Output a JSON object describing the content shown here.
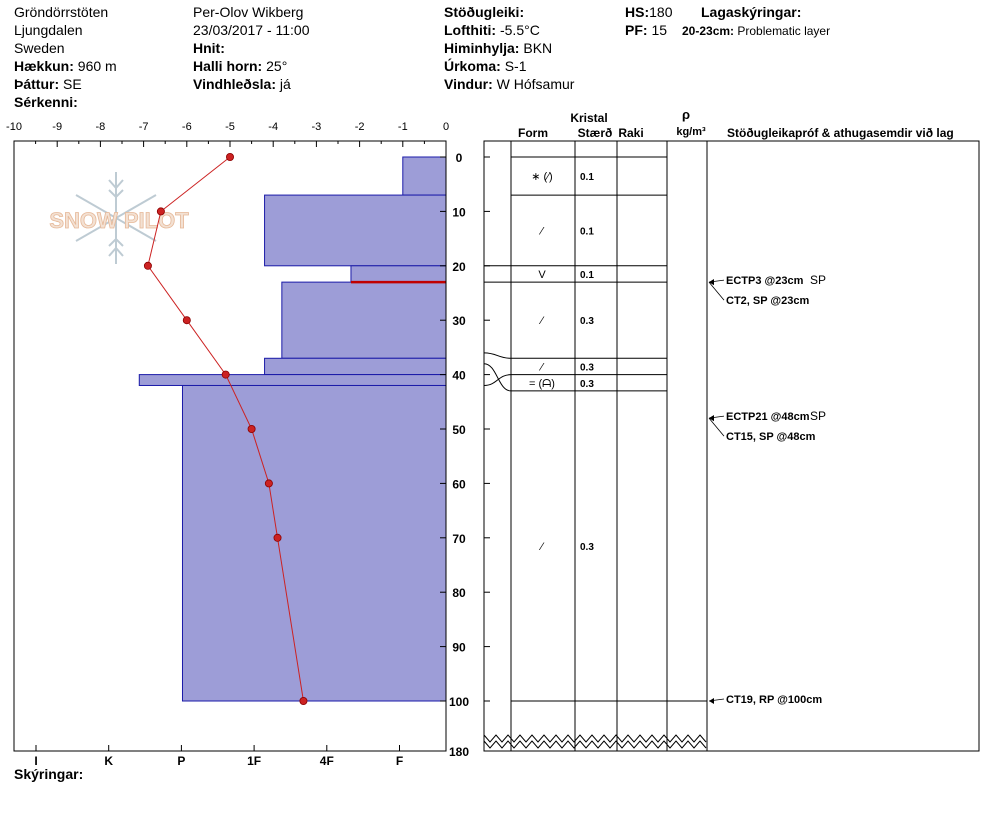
{
  "header": {
    "location": "Gröndörrstöten",
    "region": "Ljungdalen",
    "country": "Sweden",
    "elevation_label": "Hækkun:",
    "elevation_value": "960 m",
    "aspect_label": "Þáttur:",
    "aspect_value": "SE",
    "special_label": "Sérkenni:",
    "observer": "Per-Olov Wikberg",
    "datetime": "23/03/2017 - 11:00",
    "coords_label": "Hnit:",
    "slope_label": "Halli horn:",
    "slope_value": "25°",
    "wind_loading_label": "Vindhleðsla:",
    "wind_loading_value": "já",
    "stability_label": "Stöðugleiki:",
    "air_temp_label": "Lofthiti:",
    "air_temp_value": "-5.5°C",
    "sky_label": "Himinhylja:",
    "sky_value": "BKN",
    "precip_label": "Úrkoma:",
    "precip_value": "S-1",
    "wind_label": "Vindur:",
    "wind_value": "W Hófsamur",
    "hs_label": "HS:",
    "hs_value": "180",
    "pf_label": "PF:",
    "pf_value": "15",
    "legend_label": "Lagaskýringar:",
    "legend_range": "20-23cm:",
    "legend_text": "Problematic layer"
  },
  "footer": {
    "notes_label": "Skýringar:"
  },
  "watermark": "SNOW PILOT",
  "table_headers": {
    "kristal": "Kristal",
    "form": "Form",
    "size": "Stærð",
    "moisture": "Raki",
    "rho": "ρ",
    "density_unit": "kg/m³",
    "tests": "Stöðugleikapróf & athugasemdir við lag"
  },
  "chart_data": {
    "type": "snow_profile",
    "temp_axis": {
      "ticks": [
        "-10",
        "-9",
        "-8",
        "-7",
        "-6",
        "-5",
        "-4",
        "-3",
        "-2",
        "-1",
        "0"
      ],
      "range": [
        -10,
        0
      ]
    },
    "hardness_axis": {
      "ticks": [
        "I",
        "K",
        "P",
        "1F",
        "4F",
        "F"
      ]
    },
    "depth_axis": {
      "ticks": [
        "0",
        "10",
        "20",
        "30",
        "40",
        "50",
        "60",
        "70",
        "80",
        "90",
        "100",
        "180"
      ],
      "unit": "cm",
      "broken_after": 100,
      "bottom": 180
    },
    "temperature_profile": [
      {
        "depth": 0,
        "temp": -5.0
      },
      {
        "depth": 10,
        "temp": -6.6
      },
      {
        "depth": 20,
        "temp": -6.9
      },
      {
        "depth": 30,
        "temp": -6.0
      },
      {
        "depth": 40,
        "temp": -5.1
      },
      {
        "depth": 50,
        "temp": -4.5
      },
      {
        "depth": 60,
        "temp": -4.1
      },
      {
        "depth": 70,
        "temp": -3.9
      },
      {
        "depth": 100,
        "temp": -3.3
      }
    ],
    "hardness_layers": [
      {
        "top": 0,
        "bottom": 7,
        "hardness_scale": 1.0
      },
      {
        "top": 7,
        "bottom": 20,
        "hardness_scale": 4.2
      },
      {
        "top": 20,
        "bottom": 23,
        "hardness_scale": 2.2
      },
      {
        "top": 23,
        "bottom": 37,
        "hardness_scale": 3.8
      },
      {
        "top": 37,
        "bottom": 40,
        "hardness_scale": 4.2
      },
      {
        "top": 40,
        "bottom": 42,
        "hardness_scale": 7.1
      },
      {
        "top": 42,
        "bottom": 100,
        "hardness_scale": 6.1
      }
    ],
    "problem_layer": {
      "depth": 23
    },
    "crystal_layers": [
      {
        "top": 0,
        "bottom": 7,
        "form": "∗ (⁄)",
        "size": "0.1"
      },
      {
        "top": 7,
        "bottom": 20,
        "form": "⁄",
        "size": "0.1"
      },
      {
        "top": 20,
        "bottom": 23,
        "form": "V",
        "size": "0.1"
      },
      {
        "top": 23,
        "bottom": 37,
        "form": "⁄",
        "size": "0.3"
      },
      {
        "top": 37,
        "bottom": 40,
        "form": "⁄",
        "size": "0.3"
      },
      {
        "top": 40,
        "bottom": 43,
        "form": "= (ᗩ)",
        "size": "0.3"
      },
      {
        "top": 43,
        "bottom": 100,
        "form": "⁄",
        "size": "0.3"
      }
    ],
    "stability_tests": [
      {
        "depth": 23,
        "text": "ECTP3 @23cm",
        "suffix": "SP"
      },
      {
        "depth": 23,
        "text": "CT2, SP @23cm",
        "suffix": ""
      },
      {
        "depth": 48,
        "text": "ECTP21 @48cm",
        "suffix": "SP"
      },
      {
        "depth": 48,
        "text": "CT15, SP @48cm",
        "suffix": ""
      },
      {
        "depth": 100,
        "text": "CT19, RP @100cm",
        "suffix": ""
      }
    ]
  }
}
